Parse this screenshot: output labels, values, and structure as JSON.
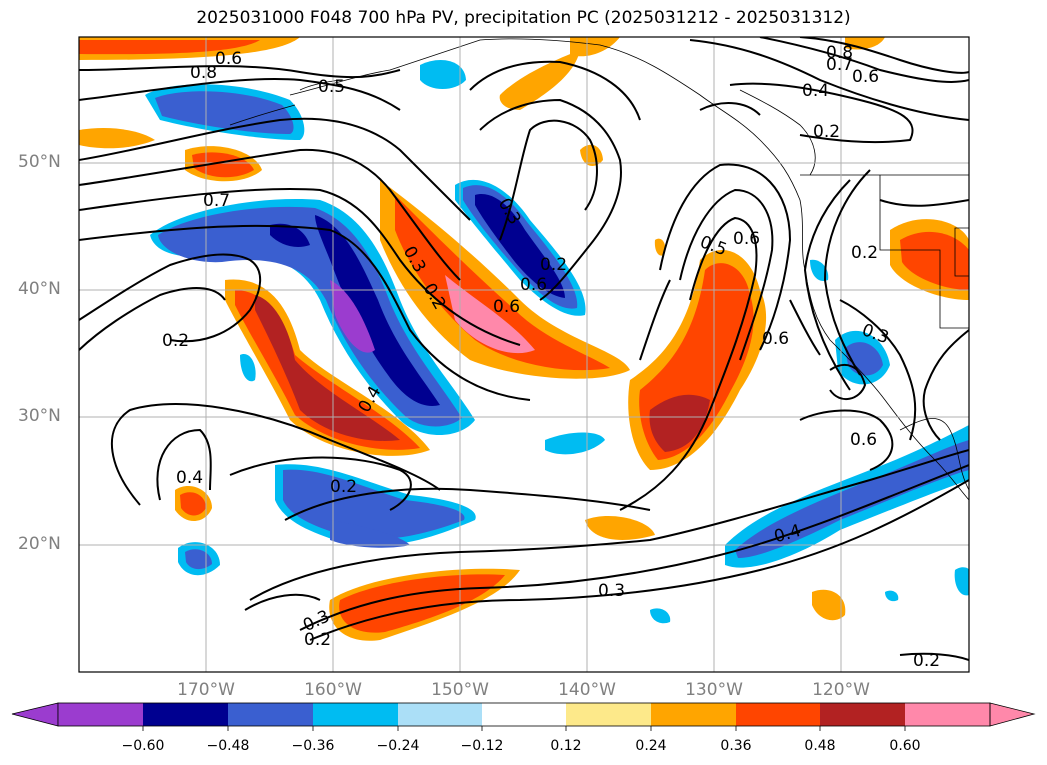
{
  "title": "2025031000 F048 700 hPa PV, precipitation PC (2025031212 - 2025031312)",
  "map": {
    "lat_labels": [
      "50°N",
      "40°N",
      "30°N",
      "20°N"
    ],
    "lon_labels": [
      "170°W",
      "160°W",
      "150°W",
      "140°W",
      "130°W",
      "120°W"
    ],
    "contour_labels": [
      "0.6",
      "0.8",
      "0.5",
      "0.7",
      "0.2",
      "0.4",
      "0.3",
      "0.2",
      "0.6",
      "0.6",
      "0.3",
      "0.2",
      "0.6",
      "0.5",
      "0.6",
      "0.2",
      "0.3",
      "0.6",
      "0.8",
      "0.7",
      "0.6",
      "0.4",
      "0.2",
      "0.4",
      "0.2",
      "0.3",
      "0.2",
      "0.3",
      "0.2",
      "0.4"
    ]
  },
  "colorbar": {
    "ticks": [
      "−0.60",
      "−0.48",
      "−0.36",
      "−0.24",
      "−0.12",
      "0.12",
      "0.24",
      "0.36",
      "0.48",
      "0.60"
    ],
    "colors": [
      "#9b3ccf",
      "#000090",
      "#3a5fd0",
      "#00bcf2",
      "#abdff7",
      "#ffffff",
      "#fde98a",
      "#ffa500",
      "#ff4500",
      "#b22222",
      "#ff88aa"
    ]
  },
  "fill_colors": {
    "neg060": "#9b3ccf",
    "neg048": "#000090",
    "neg036": "#3a5fd0",
    "neg024": "#00bcf2",
    "neg012": "#abdff7",
    "pos012": "#fde98a",
    "pos024": "#ffa500",
    "pos036": "#ff4500",
    "pos048": "#b22222",
    "pos060": "#ff88aa"
  }
}
